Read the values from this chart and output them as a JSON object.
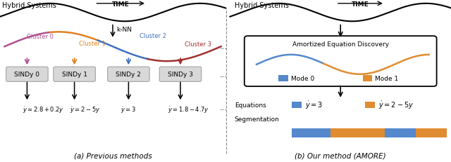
{
  "bg_color": "#ffffff",
  "cluster_colors": {
    "0": "#b05090",
    "1": "#e08020",
    "2": "#4070c0",
    "3": "#a03030"
  },
  "mode_colors": {
    "0": "#5588cc",
    "1": "#e08c30"
  },
  "sindy_box_color": "#d8d8d8",
  "title_left": "Hybrid Systems",
  "title_right": "Hybrid Systems",
  "time_label": "TIME",
  "knn_label": "k-NN",
  "cluster_labels": [
    "Cluster 0",
    "Cluster 1",
    "Cluster 2",
    "Cluster 3"
  ],
  "sindy_labels": [
    "SINDy 0",
    "SINDy 1",
    "SINDy 2",
    "SINDy 3"
  ],
  "equations_left": [
    "$\\dot{y}=2.8+0.2y$",
    "$\\dot{y}=2-5y$",
    "$\\dot{y}=3$",
    "$\\dot{y}=1.8-4.7y$"
  ],
  "caption_left": "(a) Previous methods",
  "caption_right": "(b) Our method (AMORE)",
  "aed_label": "Amortized Equation Discovery",
  "mode0_label": "Mode 0",
  "mode1_label": "Mode 1",
  "equations_label": "Equations",
  "segmentation_label": "Segmentation",
  "eq_mode0": "$\\dot{y}=3$",
  "eq_mode1": "$\\dot{y}=2-5y$",
  "seg_ratios": [
    0.25,
    0.35,
    0.2,
    0.2
  ],
  "seg_colors": [
    "#5588cc",
    "#e08c30",
    "#5588cc",
    "#e08c30"
  ]
}
